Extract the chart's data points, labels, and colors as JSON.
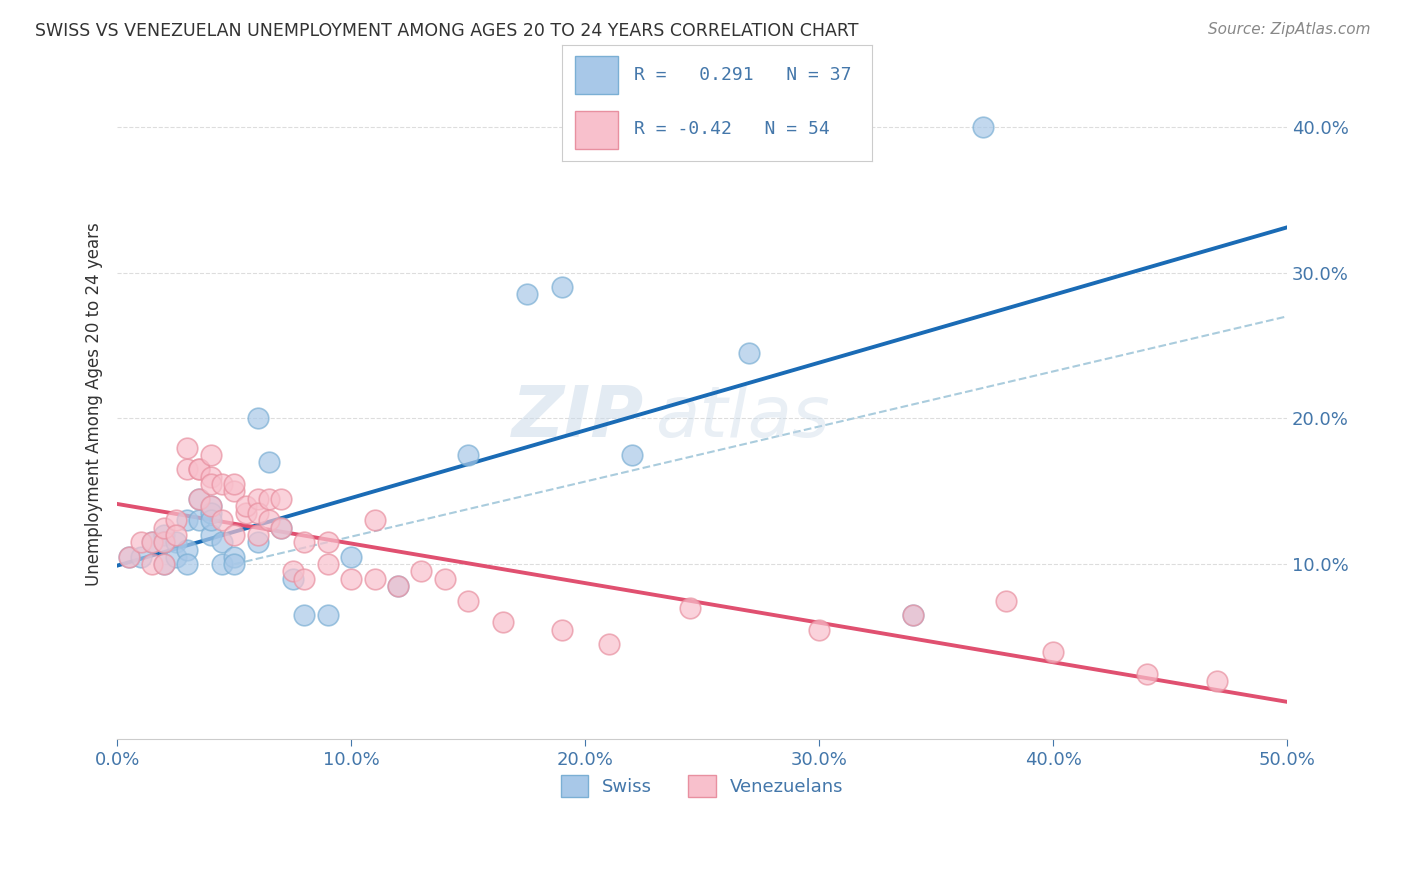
{
  "title": "SWISS VS VENEZUELAN UNEMPLOYMENT AMONG AGES 20 TO 24 YEARS CORRELATION CHART",
  "source": "Source: ZipAtlas.com",
  "ylabel": "Unemployment Among Ages 20 to 24 years",
  "xlim": [
    0.0,
    0.5
  ],
  "ylim": [
    -0.02,
    0.44
  ],
  "xticks": [
    0.0,
    0.1,
    0.2,
    0.3,
    0.4,
    0.5
  ],
  "yticks": [
    0.1,
    0.2,
    0.3,
    0.4
  ],
  "ytick_labels": [
    "10.0%",
    "20.0%",
    "30.0%",
    "40.0%"
  ],
  "xtick_labels": [
    "0.0%",
    "10.0%",
    "20.0%",
    "30.0%",
    "40.0%",
    "50.0%"
  ],
  "swiss_color": "#a8c8e8",
  "swiss_edge_color": "#7bafd4",
  "venezuelan_color": "#f8c0cc",
  "venezuelan_edge_color": "#e890a0",
  "swiss_R": 0.291,
  "swiss_N": 37,
  "venezuelan_R": -0.42,
  "venezuelan_N": 54,
  "swiss_line_color": "#1a6bb5",
  "venezuelan_line_color": "#e05070",
  "dash_line_color": "#aaccdd",
  "swiss_scatter_x": [
    0.005,
    0.01,
    0.015,
    0.02,
    0.02,
    0.02,
    0.025,
    0.025,
    0.03,
    0.03,
    0.03,
    0.035,
    0.035,
    0.04,
    0.04,
    0.04,
    0.04,
    0.045,
    0.045,
    0.05,
    0.05,
    0.06,
    0.06,
    0.065,
    0.07,
    0.075,
    0.08,
    0.09,
    0.1,
    0.12,
    0.15,
    0.175,
    0.19,
    0.22,
    0.27,
    0.34,
    0.37
  ],
  "swiss_scatter_y": [
    0.105,
    0.105,
    0.115,
    0.12,
    0.115,
    0.1,
    0.115,
    0.105,
    0.13,
    0.11,
    0.1,
    0.145,
    0.13,
    0.14,
    0.12,
    0.135,
    0.13,
    0.1,
    0.115,
    0.105,
    0.1,
    0.2,
    0.115,
    0.17,
    0.125,
    0.09,
    0.065,
    0.065,
    0.105,
    0.085,
    0.175,
    0.285,
    0.29,
    0.175,
    0.245,
    0.065,
    0.4
  ],
  "venezuelan_scatter_x": [
    0.005,
    0.01,
    0.015,
    0.015,
    0.02,
    0.02,
    0.02,
    0.025,
    0.025,
    0.03,
    0.03,
    0.035,
    0.035,
    0.035,
    0.04,
    0.04,
    0.04,
    0.04,
    0.045,
    0.045,
    0.05,
    0.05,
    0.05,
    0.055,
    0.055,
    0.06,
    0.06,
    0.06,
    0.065,
    0.065,
    0.07,
    0.07,
    0.075,
    0.08,
    0.08,
    0.09,
    0.09,
    0.1,
    0.11,
    0.11,
    0.12,
    0.13,
    0.14,
    0.15,
    0.165,
    0.19,
    0.21,
    0.245,
    0.3,
    0.34,
    0.38,
    0.4,
    0.44,
    0.47
  ],
  "venezuelan_scatter_y": [
    0.105,
    0.115,
    0.115,
    0.1,
    0.115,
    0.125,
    0.1,
    0.13,
    0.12,
    0.165,
    0.18,
    0.165,
    0.165,
    0.145,
    0.16,
    0.175,
    0.155,
    0.14,
    0.13,
    0.155,
    0.15,
    0.155,
    0.12,
    0.135,
    0.14,
    0.145,
    0.135,
    0.12,
    0.145,
    0.13,
    0.145,
    0.125,
    0.095,
    0.115,
    0.09,
    0.115,
    0.1,
    0.09,
    0.09,
    0.13,
    0.085,
    0.095,
    0.09,
    0.075,
    0.06,
    0.055,
    0.045,
    0.07,
    0.055,
    0.065,
    0.075,
    0.04,
    0.025,
    0.02
  ],
  "background_color": "#ffffff",
  "grid_color": "#dddddd",
  "title_color": "#333333",
  "axis_label_color": "#4477aa",
  "tick_label_color": "#4477aa",
  "watermark_color": "#c8d8e8"
}
